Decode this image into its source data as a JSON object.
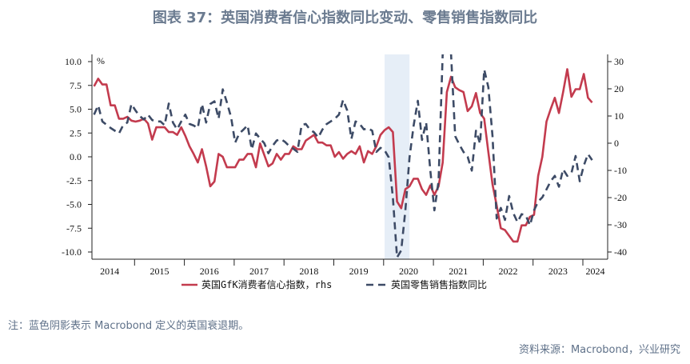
{
  "title": "图表 37：英国消费者信心指数同比变动、零售销售指数同比",
  "note": "注：蓝色阴影表示 Macrobond 定义的英国衰退期。",
  "source": "资料来源：Macrobond，兴业研究",
  "chart_data": {
    "type": "line",
    "left_unit": "%",
    "x_ticks": [
      "2014",
      "2015",
      "2016",
      "2017",
      "2018",
      "2019",
      "2020",
      "2021",
      "2022",
      "2023",
      "2024"
    ],
    "left_axis": {
      "range": [
        -10,
        10
      ],
      "ticks": [
        "10.0",
        "7.5",
        "5.0",
        "2.5",
        "0.0",
        "-2.5",
        "-5.0",
        "-7.5",
        "-10.0"
      ]
    },
    "right_axis": {
      "range": [
        -40,
        30
      ],
      "ticks": [
        "30",
        "20",
        "10",
        "0",
        "-10",
        "-20",
        "-30",
        "-40"
      ]
    },
    "recession_shade": {
      "start": "2020-01",
      "end": "2020-07",
      "color": "#e6eef7"
    },
    "grid": false,
    "legend_position": "bottom",
    "series": [
      {
        "name": "英国GfK消费者信心指数，rhs",
        "axis": "left",
        "style": "solid",
        "color": "#c33b4e",
        "data": [
          [
            "2014-03",
            7.4
          ],
          [
            "2014-04",
            8.2
          ],
          [
            "2014-05",
            7.6
          ],
          [
            "2014-06",
            7.6
          ],
          [
            "2014-07",
            5.4
          ],
          [
            "2014-08",
            5.4
          ],
          [
            "2014-09",
            4.0
          ],
          [
            "2014-10",
            4.0
          ],
          [
            "2014-11",
            4.2
          ],
          [
            "2014-12",
            3.8
          ],
          [
            "2015-01",
            3.7
          ],
          [
            "2015-02",
            3.8
          ],
          [
            "2015-03",
            4.0
          ],
          [
            "2015-04",
            3.5
          ],
          [
            "2015-05",
            1.8
          ],
          [
            "2015-06",
            3.1
          ],
          [
            "2015-07",
            3.1
          ],
          [
            "2015-08",
            3.1
          ],
          [
            "2015-09",
            2.6
          ],
          [
            "2015-10",
            2.6
          ],
          [
            "2015-11",
            2.3
          ],
          [
            "2015-12",
            3.1
          ],
          [
            "2016-01",
            2.2
          ],
          [
            "2016-02",
            1.1
          ],
          [
            "2016-03",
            0.3
          ],
          [
            "2016-04",
            -0.6
          ],
          [
            "2016-05",
            0.8
          ],
          [
            "2016-06",
            -1.0
          ],
          [
            "2016-07",
            -3.1
          ],
          [
            "2016-08",
            -2.6
          ],
          [
            "2016-09",
            0.3
          ],
          [
            "2016-10",
            0.0
          ],
          [
            "2016-11",
            -1.1
          ],
          [
            "2016-12",
            -1.1
          ],
          [
            "2017-01",
            -1.1
          ],
          [
            "2017-02",
            -0.3
          ],
          [
            "2017-03",
            -0.3
          ],
          [
            "2017-04",
            0.3
          ],
          [
            "2017-05",
            0.3
          ],
          [
            "2017-06",
            -1.1
          ],
          [
            "2017-07",
            1.4
          ],
          [
            "2017-08",
            0.2
          ],
          [
            "2017-09",
            -1.0
          ],
          [
            "2017-10",
            -0.7
          ],
          [
            "2017-11",
            0.3
          ],
          [
            "2017-12",
            -0.3
          ],
          [
            "2018-01",
            0.3
          ],
          [
            "2018-02",
            0.3
          ],
          [
            "2018-03",
            1.1
          ],
          [
            "2018-04",
            0.8
          ],
          [
            "2018-05",
            0.8
          ],
          [
            "2018-06",
            1.7
          ],
          [
            "2018-07",
            2.0
          ],
          [
            "2018-08",
            2.3
          ],
          [
            "2018-09",
            1.5
          ],
          [
            "2018-10",
            1.5
          ],
          [
            "2018-11",
            1.2
          ],
          [
            "2018-12",
            1.2
          ],
          [
            "2019-01",
            0.0
          ],
          [
            "2019-02",
            0.5
          ],
          [
            "2019-03",
            -0.2
          ],
          [
            "2019-04",
            0.3
          ],
          [
            "2019-05",
            0.6
          ],
          [
            "2019-06",
            0.3
          ],
          [
            "2019-07",
            1.1
          ],
          [
            "2019-08",
            -0.6
          ],
          [
            "2019-09",
            0.6
          ],
          [
            "2019-10",
            0.3
          ],
          [
            "2019-11",
            1.1
          ],
          [
            "2019-12",
            2.3
          ],
          [
            "2020-01",
            2.8
          ],
          [
            "2020-02",
            3.1
          ],
          [
            "2020-03",
            2.6
          ],
          [
            "2020-04",
            -4.7
          ],
          [
            "2020-05",
            -5.4
          ],
          [
            "2020-06",
            -3.4
          ],
          [
            "2020-07",
            -3.1
          ],
          [
            "2020-08",
            -2.3
          ],
          [
            "2020-09",
            -2.3
          ],
          [
            "2020-10",
            -3.4
          ],
          [
            "2020-11",
            -4.0
          ],
          [
            "2020-12",
            -3.0
          ],
          [
            "2021-01",
            -4.0
          ],
          [
            "2021-02",
            -3.1
          ],
          [
            "2021-03",
            -0.6
          ],
          [
            "2021-04",
            6.8
          ],
          [
            "2021-05",
            8.4
          ],
          [
            "2021-06",
            7.3
          ],
          [
            "2021-07",
            7.0
          ],
          [
            "2021-08",
            6.8
          ],
          [
            "2021-09",
            4.8
          ],
          [
            "2021-10",
            5.3
          ],
          [
            "2021-11",
            6.7
          ],
          [
            "2021-12",
            4.6
          ],
          [
            "2022-01",
            4.0
          ],
          [
            "2022-02",
            0.5
          ],
          [
            "2022-03",
            -2.9
          ],
          [
            "2022-04",
            -5.1
          ],
          [
            "2022-05",
            -7.5
          ],
          [
            "2022-06",
            -7.7
          ],
          [
            "2022-07",
            -8.3
          ],
          [
            "2022-08",
            -8.9
          ],
          [
            "2022-09",
            -8.9
          ],
          [
            "2022-10",
            -7.2
          ],
          [
            "2022-11",
            -7.2
          ],
          [
            "2022-12",
            -6.3
          ],
          [
            "2023-01",
            -6.1
          ],
          [
            "2023-02",
            -2.0
          ],
          [
            "2023-03",
            0.0
          ],
          [
            "2023-04",
            3.7
          ],
          [
            "2023-05",
            5.0
          ],
          [
            "2023-06",
            6.2
          ],
          [
            "2023-07",
            4.6
          ],
          [
            "2023-08",
            6.8
          ],
          [
            "2023-09",
            9.2
          ],
          [
            "2023-10",
            6.3
          ],
          [
            "2023-11",
            7.1
          ],
          [
            "2023-12",
            7.1
          ],
          [
            "2024-01",
            8.7
          ],
          [
            "2024-02",
            6.2
          ],
          [
            "2024-03",
            5.7
          ]
        ]
      },
      {
        "name": "英国零售销售指数同比",
        "axis": "right",
        "style": "dashed",
        "color": "#3d4b66",
        "data": [
          [
            "2014-03",
            10.5
          ],
          [
            "2014-04",
            13.9
          ],
          [
            "2014-05",
            8.0
          ],
          [
            "2014-06",
            6.8
          ],
          [
            "2014-07",
            5.6
          ],
          [
            "2014-08",
            4.6
          ],
          [
            "2014-09",
            3.6
          ],
          [
            "2014-10",
            6.6
          ],
          [
            "2014-11",
            7.6
          ],
          [
            "2014-12",
            14.4
          ],
          [
            "2015-01",
            12
          ],
          [
            "2015-02",
            10
          ],
          [
            "2015-03",
            8.7
          ],
          [
            "2015-04",
            10.5
          ],
          [
            "2015-05",
            8.5
          ],
          [
            "2015-06",
            8.0
          ],
          [
            "2015-07",
            8.0
          ],
          [
            "2015-08",
            6.6
          ],
          [
            "2015-09",
            14.6
          ],
          [
            "2015-10",
            7.6
          ],
          [
            "2015-11",
            5.1
          ],
          [
            "2015-12",
            8.0
          ],
          [
            "2016-01",
            10.5
          ],
          [
            "2016-02",
            7.1
          ],
          [
            "2016-03",
            6.5
          ],
          [
            "2016-04",
            5.6
          ],
          [
            "2016-05",
            14.4
          ],
          [
            "2016-06",
            7.6
          ],
          [
            "2016-07",
            14.4
          ],
          [
            "2016-08",
            15.4
          ],
          [
            "2016-09",
            9.0
          ],
          [
            "2016-10",
            19.8
          ],
          [
            "2016-11",
            15
          ],
          [
            "2016-12",
            9.6
          ],
          [
            "2017-01",
            0.2
          ],
          [
            "2017-02",
            3.6
          ],
          [
            "2017-03",
            5
          ],
          [
            "2017-04",
            6.6
          ],
          [
            "2017-05",
            -2.3
          ],
          [
            "2017-06",
            3.6
          ],
          [
            "2017-07",
            1.7
          ],
          [
            "2017-08",
            0
          ],
          [
            "2017-09",
            -3.7
          ],
          [
            "2017-10",
            -1
          ],
          [
            "2017-11",
            1.0
          ],
          [
            "2017-12",
            1.5
          ],
          [
            "2018-01",
            0.5
          ],
          [
            "2018-02",
            -1
          ],
          [
            "2018-03",
            -2
          ],
          [
            "2018-04",
            -3.2
          ],
          [
            "2018-05",
            6.6
          ],
          [
            "2018-06",
            7.1
          ],
          [
            "2018-07",
            5
          ],
          [
            "2018-08",
            4
          ],
          [
            "2018-09",
            2.1
          ],
          [
            "2018-10",
            5
          ],
          [
            "2018-11",
            7
          ],
          [
            "2018-12",
            8.0
          ],
          [
            "2019-01",
            9
          ],
          [
            "2019-02",
            10.5
          ],
          [
            "2019-03",
            15.9
          ],
          [
            "2019-04",
            12
          ],
          [
            "2019-05",
            1.6
          ],
          [
            "2019-06",
            8.0
          ],
          [
            "2019-07",
            7.1
          ],
          [
            "2019-08",
            5.1
          ],
          [
            "2019-09",
            5.5
          ],
          [
            "2019-10",
            4.6
          ],
          [
            "2019-11",
            -3.2
          ],
          [
            "2019-12",
            -1.7
          ],
          [
            "2020-01",
            -2.6
          ],
          [
            "2020-02",
            -5.2
          ],
          [
            "2020-03",
            -20
          ],
          [
            "2020-04",
            -42
          ],
          [
            "2020-05",
            -39.4
          ],
          [
            "2020-06",
            -24.7
          ],
          [
            "2020-07",
            -5.2
          ],
          [
            "2020-08",
            6.6
          ],
          [
            "2020-09",
            15.6
          ],
          [
            "2020-10",
            1.2
          ],
          [
            "2020-11",
            7.6
          ],
          [
            "2020-12",
            -10
          ],
          [
            "2021-01",
            -24.7
          ],
          [
            "2021-02",
            -14
          ],
          [
            "2021-03",
            33
          ],
          [
            "2021-04",
            33
          ],
          [
            "2021-05",
            33
          ],
          [
            "2021-06",
            2.6
          ],
          [
            "2021-07",
            -0.5
          ],
          [
            "2021-08",
            -3.2
          ],
          [
            "2021-09",
            -5
          ],
          [
            "2021-10",
            -10.1
          ],
          [
            "2021-11",
            4.6
          ],
          [
            "2021-12",
            -0.2
          ],
          [
            "2022-01",
            27.1
          ],
          [
            "2022-02",
            20.6
          ],
          [
            "2022-03",
            2.6
          ],
          [
            "2022-04",
            -27.7
          ],
          [
            "2022-05",
            -23.8
          ],
          [
            "2022-06",
            -28.2
          ],
          [
            "2022-07",
            -19.4
          ],
          [
            "2022-08",
            -25.7
          ],
          [
            "2022-09",
            -29
          ],
          [
            "2022-10",
            -26.1
          ],
          [
            "2022-11",
            -26.5
          ],
          [
            "2022-12",
            -30.2
          ],
          [
            "2023-01",
            -24.7
          ],
          [
            "2023-02",
            -21.4
          ],
          [
            "2023-03",
            -19.9
          ],
          [
            "2023-04",
            -17
          ],
          [
            "2023-05",
            -14
          ],
          [
            "2023-06",
            -12
          ],
          [
            "2023-07",
            -16
          ],
          [
            "2023-08",
            -9.6
          ],
          [
            "2023-09",
            -12
          ],
          [
            "2023-10",
            -11
          ],
          [
            "2023-11",
            -4.7
          ],
          [
            "2023-12",
            -14
          ],
          [
            "2024-01",
            -8.2
          ],
          [
            "2024-02",
            -4.0
          ],
          [
            "2024-03",
            -6.2
          ]
        ]
      }
    ]
  }
}
